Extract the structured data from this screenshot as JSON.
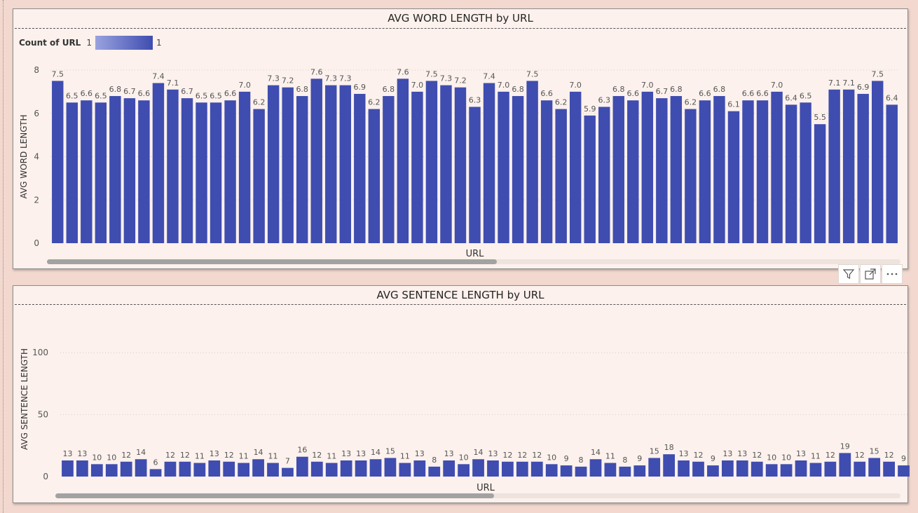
{
  "colors": {
    "bar": "#3f4db0",
    "background": "#fcf1ec",
    "page": "#f2d8cf",
    "text": "#444444",
    "gridline": "#d7cdc8"
  },
  "legend": {
    "title": "Count of URL",
    "min": "1",
    "max": "1"
  },
  "header_tools": [
    "filter-icon",
    "focus-mode-icon",
    "more-options-icon"
  ],
  "chart_data": [
    {
      "type": "bar",
      "title": "AVG WORD LENGTH by URL",
      "xlabel": "URL",
      "ylabel": "AVG WORD LENGTH",
      "ylim": [
        0,
        8
      ],
      "yticks": [
        "0",
        "2",
        "4",
        "6",
        "8"
      ],
      "grid": true,
      "values": [
        7.5,
        6.5,
        6.6,
        6.5,
        6.8,
        6.7,
        6.6,
        7.4,
        7.1,
        6.7,
        6.5,
        6.5,
        6.6,
        7.0,
        6.2,
        7.3,
        7.2,
        6.8,
        7.6,
        7.3,
        7.3,
        6.9,
        6.2,
        6.8,
        7.6,
        7.0,
        7.5,
        7.3,
        7.2,
        6.3,
        7.4,
        7.0,
        6.8,
        7.5,
        6.6,
        6.2,
        7.0,
        5.9,
        6.3,
        6.8,
        6.6,
        7.0,
        6.7,
        6.8,
        6.2,
        6.6,
        6.8,
        6.1,
        6.6,
        6.6,
        7.0,
        6.4,
        6.5,
        5.5,
        7.1,
        7.1,
        6.9,
        7.5,
        6.4
      ],
      "labels": [
        "7.5",
        "6.5",
        "6.6",
        "6.5",
        "6.8",
        "6.7",
        "6.6",
        "7.4",
        "7.1",
        "6.7",
        "6.5",
        "6.5",
        "6.6",
        "7.0",
        "6.2",
        "7.3",
        "7.2",
        "6.8",
        "7.6",
        "7.3",
        "7.3",
        "6.9",
        "6.2",
        "6.8",
        "7.6",
        "7.0",
        "7.5",
        "7.3",
        "7.2",
        "6.3",
        "7.4",
        "7.0",
        "6.8",
        "7.5",
        "6.6",
        "6.2",
        "7.0",
        "5.9",
        "6.3",
        "6.8",
        "6.6",
        "7.0",
        "6.7",
        "6.8",
        "6.2",
        "6.6",
        "6.8",
        "6.1",
        "6.6",
        "6.6",
        "7.0",
        "6.4",
        "6.5",
        "5.5",
        "7.1",
        "7.1",
        "6.9",
        "7.5",
        "6.4"
      ]
    },
    {
      "type": "bar",
      "title": "AVG SENTENCE LENGTH by URL",
      "xlabel": "URL",
      "ylabel": "AVG SENTENCE LENGTH",
      "ylim": [
        0,
        125
      ],
      "yticks": [
        "0",
        "50",
        "100"
      ],
      "grid": true,
      "values": [
        13,
        13,
        10,
        10,
        12,
        14,
        6,
        12,
        12,
        11,
        13,
        12,
        11,
        14,
        11,
        7,
        16,
        12,
        11,
        13,
        13,
        14,
        15,
        11,
        13,
        8,
        13,
        10,
        14,
        13,
        12,
        12,
        12,
        10,
        9,
        8,
        14,
        11,
        8,
        9,
        15,
        18,
        13,
        12,
        9,
        13,
        13,
        12,
        10,
        10,
        13,
        11,
        12,
        19,
        12,
        15,
        12,
        9
      ],
      "labels": [
        "13",
        "13",
        "10",
        "10",
        "12",
        "14",
        "6",
        "12",
        "12",
        "11",
        "13",
        "12",
        "11",
        "14",
        "11",
        "7",
        "16",
        "12",
        "11",
        "13",
        "13",
        "14",
        "15",
        "11",
        "13",
        "8",
        "13",
        "10",
        "14",
        "13",
        "12",
        "12",
        "12",
        "10",
        "9",
        "8",
        "14",
        "11",
        "8",
        "9",
        "15",
        "18",
        "13",
        "12",
        "9",
        "13",
        "13",
        "12",
        "10",
        "10",
        "13",
        "11",
        "12",
        "19",
        "12",
        "15",
        "12",
        "9"
      ]
    }
  ]
}
